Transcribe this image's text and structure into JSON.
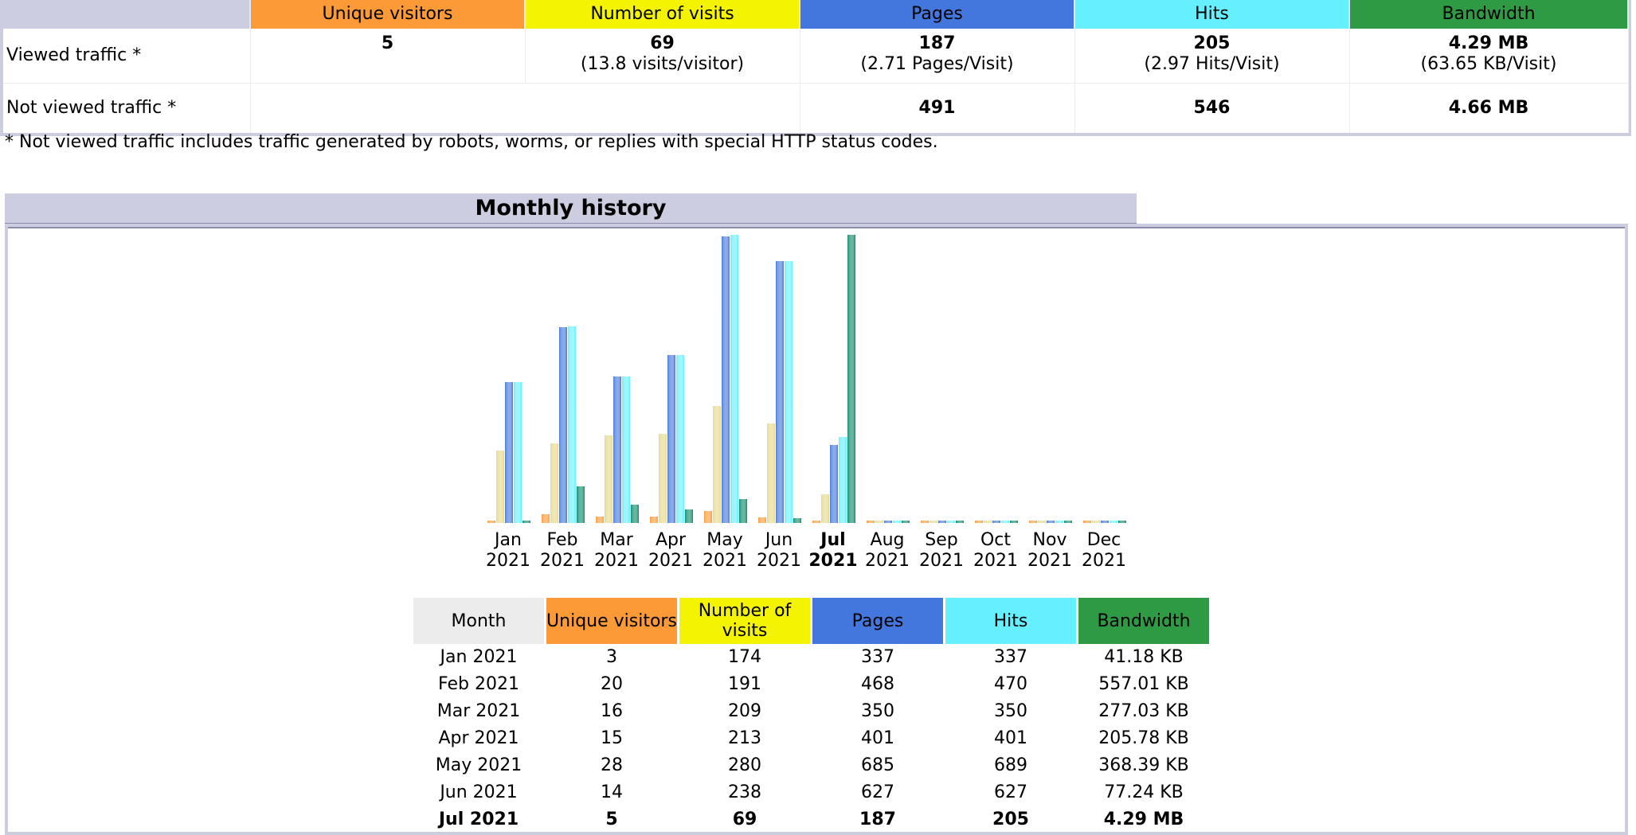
{
  "summary": {
    "columns": [
      "Unique visitors",
      "Number of visits",
      "Pages",
      "Hits",
      "Bandwidth"
    ],
    "viewed": {
      "label": "Viewed traffic *",
      "unique_visitors": "5",
      "visits": "69",
      "visits_sub": "(13.8 visits/visitor)",
      "pages": "187",
      "pages_sub": "(2.71 Pages/Visit)",
      "hits": "205",
      "hits_sub": "(2.97 Hits/Visit)",
      "bandwidth": "4.29 MB",
      "bandwidth_sub": "(63.65 KB/Visit)"
    },
    "not_viewed": {
      "label": "Not viewed traffic *",
      "pages": "491",
      "hits": "546",
      "bandwidth": "4.66 MB"
    },
    "note": "* Not viewed traffic includes traffic generated by robots, worms, or replies with special HTTP status codes."
  },
  "monthly": {
    "title": "Monthly history",
    "table_headers": [
      "Month",
      "Unique visitors",
      "Number of visits",
      "Pages",
      "Hits",
      "Bandwidth"
    ],
    "rows": [
      [
        "Jan 2021",
        "3",
        "174",
        "337",
        "337",
        "41.18 KB"
      ],
      [
        "Feb 2021",
        "20",
        "191",
        "468",
        "470",
        "557.01 KB"
      ],
      [
        "Mar 2021",
        "16",
        "209",
        "350",
        "350",
        "277.03 KB"
      ],
      [
        "Apr 2021",
        "15",
        "213",
        "401",
        "401",
        "205.78 KB"
      ],
      [
        "May 2021",
        "28",
        "280",
        "685",
        "689",
        "368.39 KB"
      ],
      [
        "Jun 2021",
        "14",
        "238",
        "627",
        "627",
        "77.24 KB"
      ],
      [
        "Jul 2021",
        "5",
        "69",
        "187",
        "205",
        "4.29 MB"
      ]
    ]
  },
  "chart_data": {
    "type": "bar",
    "title": "Monthly history",
    "categories": [
      "Jan",
      "Feb",
      "Mar",
      "Apr",
      "May",
      "Jun",
      "Jul",
      "Aug",
      "Sep",
      "Oct",
      "Nov",
      "Dec"
    ],
    "year_labels": [
      "2021",
      "2021",
      "2021",
      "2021",
      "2021",
      "2021",
      "2021",
      "2021",
      "2021",
      "2021",
      "2021",
      "2021"
    ],
    "highlight_category": "Jul",
    "series": [
      {
        "name": "Unique visitors",
        "color": "#fb9a37",
        "values": [
          3,
          20,
          16,
          15,
          28,
          14,
          5,
          0,
          0,
          0,
          0,
          0
        ]
      },
      {
        "name": "Number of visits",
        "color": "#e6d98a",
        "values": [
          174,
          191,
          209,
          213,
          280,
          238,
          69,
          0,
          0,
          0,
          0,
          0
        ]
      },
      {
        "name": "Pages",
        "color": "#4477dd",
        "values": [
          337,
          468,
          350,
          401,
          685,
          627,
          187,
          0,
          0,
          0,
          0,
          0
        ]
      },
      {
        "name": "Hits",
        "color": "#66f0ff",
        "values": [
          337,
          470,
          350,
          401,
          689,
          627,
          205,
          0,
          0,
          0,
          0,
          0
        ]
      },
      {
        "name": "Bandwidth",
        "color": "#0f8a6a",
        "unit": "KB",
        "values": [
          41.18,
          557.01,
          277.03,
          205.78,
          368.39,
          77.24,
          4392.96,
          0,
          0,
          0,
          0,
          0
        ]
      }
    ]
  }
}
